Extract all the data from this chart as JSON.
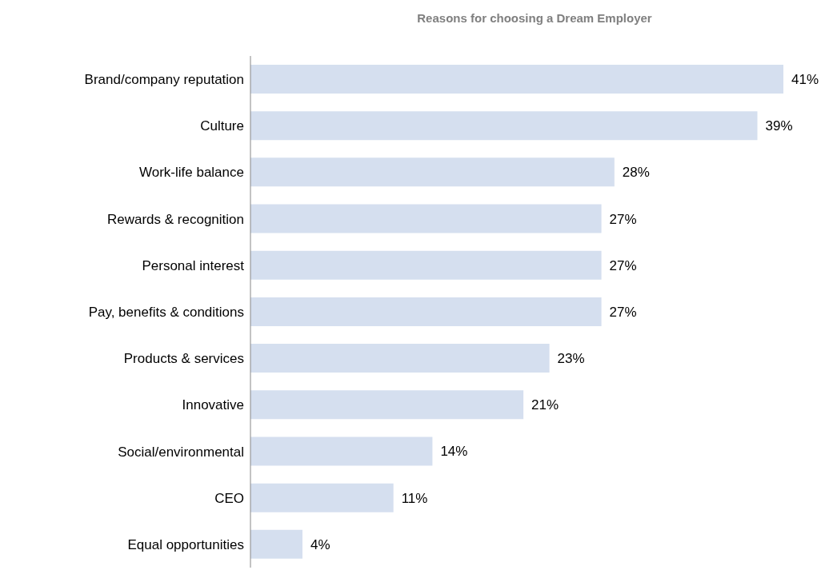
{
  "chart_data": {
    "type": "bar",
    "orientation": "horizontal",
    "title": "Reasons for choosing a Dream Employer",
    "categories": [
      "Brand/company reputation",
      "Culture",
      "Work-life balance",
      "Rewards & recognition",
      "Personal interest",
      "Pay, benefits & conditions",
      "Products & services",
      "Innovative",
      "Social/environmental",
      "CEO",
      "Equal opportunities"
    ],
    "values": [
      41,
      39,
      28,
      27,
      27,
      27,
      23,
      21,
      14,
      11,
      4
    ],
    "value_labels": [
      "41%",
      "39%",
      "28%",
      "27%",
      "27%",
      "27%",
      "23%",
      "21%",
      "14%",
      "11%",
      "4%"
    ],
    "color": "#d5dfef",
    "grid": false,
    "legend": false
  }
}
